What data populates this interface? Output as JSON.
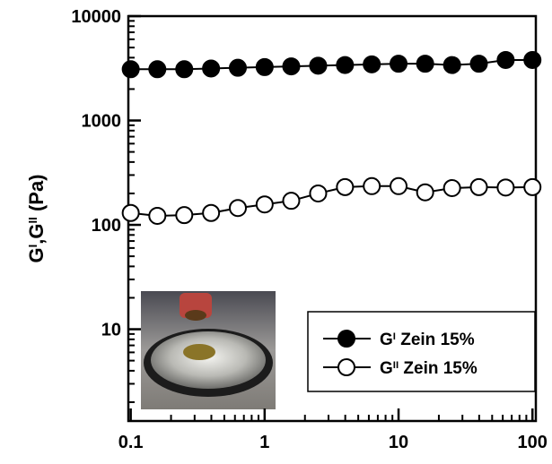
{
  "chart_data": {
    "type": "line",
    "y_label": [
      "G",
      "I",
      ",G",
      "II",
      " (Pa)"
    ],
    "x": [
      0.1,
      0.158,
      0.251,
      0.398,
      0.631,
      1,
      1.58,
      2.51,
      3.98,
      6.31,
      10,
      15.8,
      25.1,
      39.8,
      63.1,
      100
    ],
    "series": [
      {
        "name": [
          "G",
          "I",
          " Zein 15%"
        ],
        "color": "#000000",
        "marker": "filled",
        "values": [
          3100,
          3100,
          3100,
          3150,
          3200,
          3250,
          3300,
          3350,
          3400,
          3450,
          3500,
          3500,
          3400,
          3500,
          3800,
          3800
        ]
      },
      {
        "name": [
          "G",
          "II",
          " Zein 15%"
        ],
        "color": "#000000",
        "marker": "open",
        "values": [
          130,
          122,
          124,
          130,
          145,
          157,
          170,
          200,
          230,
          235,
          235,
          205,
          225,
          230,
          228,
          230
        ]
      }
    ],
    "xlog": true,
    "ylog": true,
    "xlim": [
      0.096,
      106
    ],
    "ylim": [
      1.32,
      10000
    ],
    "xticks": [
      0.1,
      1,
      10,
      100
    ],
    "yticks": [
      10,
      100,
      1000,
      10000
    ],
    "legend": "lower right"
  }
}
